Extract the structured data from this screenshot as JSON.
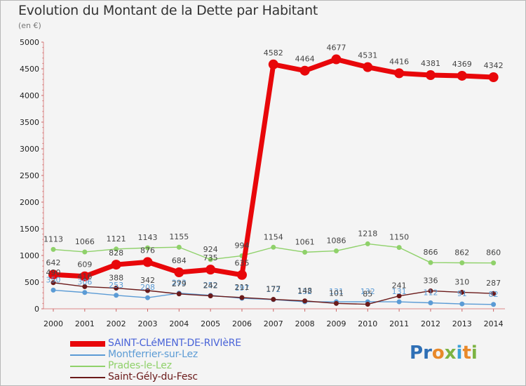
{
  "title": "Evolution du Montant de la Dette par Habitant",
  "subtitle": "(en €)",
  "logo": {
    "letters": [
      {
        "ch": "P",
        "color": "#2e6fb5"
      },
      {
        "ch": "r",
        "color": "#2e6fb5"
      },
      {
        "ch": "o",
        "color": "#e8892a"
      },
      {
        "ch": "x",
        "color": "#7cb342"
      },
      {
        "ch": "i",
        "color": "#3aa0d8"
      },
      {
        "ch": "t",
        "color": "#e8892a"
      },
      {
        "ch": "i",
        "color": "#7cb342"
      }
    ]
  },
  "chart_data": {
    "type": "line",
    "title": "Evolution du Montant de la Dette par Habitant",
    "ylabel": "(en €)",
    "xlabel": "",
    "ylim": [
      0,
      5000
    ],
    "yticks": [
      0,
      500,
      1000,
      1500,
      2000,
      2500,
      3000,
      3500,
      4000,
      4500,
      5000
    ],
    "grid": false,
    "categories": [
      "2000",
      "2001",
      "2002",
      "2003",
      "2004",
      "2005",
      "2006",
      "2007",
      "2008",
      "2009",
      "2010",
      "2011",
      "2012",
      "2013",
      "2014"
    ],
    "series": [
      {
        "name": "SAINT-CLéMENT-DE-RIVIèRE",
        "color": "#e8070a",
        "label_color": "#444444",
        "highlight": true,
        "values": [
          642,
          609,
          828,
          876,
          684,
          735,
          635,
          4582,
          4464,
          4677,
          4531,
          4416,
          4381,
          4369,
          4342
        ]
      },
      {
        "name": "Montferrier-sur-Lez",
        "color": "#5b9bd5",
        "label_color": "#5b9bd5",
        "values": [
          350,
          306,
          253,
          208,
          293,
          252,
          197,
          172,
          132,
          131,
          132,
          131,
          112,
          91,
          82
        ]
      },
      {
        "name": "Prades-le-Lez",
        "color": "#8fd16a",
        "label_color": "#444444",
        "values": [
          1113,
          1066,
          1121,
          1143,
          1155,
          924,
          994,
          1154,
          1061,
          1086,
          1218,
          1150,
          866,
          862,
          860
        ]
      },
      {
        "name": "Saint-Gély-du-Fesc",
        "color": "#6b1a1a",
        "label_color": "#444444",
        "values": [
          490,
          416,
          388,
          342,
          279,
          242,
          211,
          177,
          148,
          101,
          85,
          241,
          336,
          310,
          287
        ]
      }
    ]
  }
}
